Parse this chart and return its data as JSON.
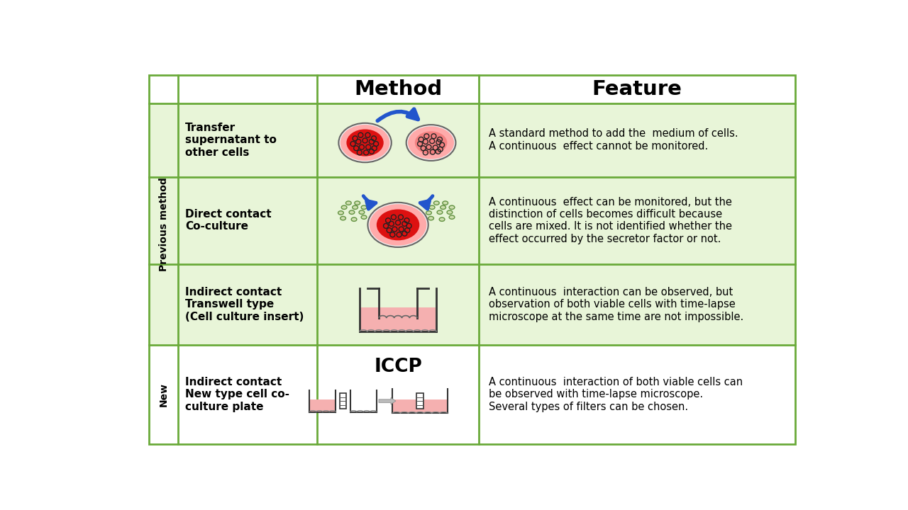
{
  "bg_color": "#ffffff",
  "table_border_color": "#6aaa3a",
  "row_bg_light": "#e8f5d8",
  "row_bg_new": "#ffffff",
  "rows": [
    {
      "label": "Transfer\nsupernatant to\nother cells",
      "feature": "A standard method to add the  medium of cells.\nA continuous  effect cannot be monitored."
    },
    {
      "label": "Direct contact\nCo-culture",
      "feature": "A continuous  effect can be monitored, but the\ndistinction of cells becomes difficult because\ncells are mixed. It is not identified whether the\neffect occurred by the secretor factor or not."
    },
    {
      "label": "Indirect contact\nTranswell type\n(Cell culture insert)",
      "feature": "A continuous  interaction can be observed, but\nobservation of both viable cells with time-lapse\nmicroscope at the same time are not impossible."
    },
    {
      "label": "Indirect contact\nNew type cell co-\nculture plate",
      "feature": "A continuous  interaction of both viable cells can\nbe observed with time-lapse microscope.\nSeveral types of filters can be chosen."
    }
  ]
}
